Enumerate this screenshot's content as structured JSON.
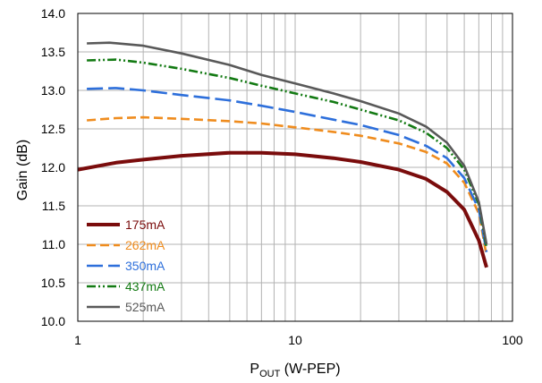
{
  "chart_data": {
    "type": "line",
    "title": "",
    "xlabel": {
      "main": "P",
      "sub": "OUT",
      "rest": " (W-PEP)"
    },
    "ylabel": "Gain (dB)",
    "x_scale": "log",
    "xlim": [
      1,
      100
    ],
    "ylim": [
      10.0,
      14.0
    ],
    "x_ticks": [
      {
        "value": 1,
        "label": "1"
      },
      {
        "value": 10,
        "label": "10"
      },
      {
        "value": 100,
        "label": "100"
      }
    ],
    "y_ticks": [
      {
        "value": 10.0,
        "label": "10.0"
      },
      {
        "value": 10.5,
        "label": "10.5"
      },
      {
        "value": 11.0,
        "label": "11.0"
      },
      {
        "value": 11.5,
        "label": "11.5"
      },
      {
        "value": 12.0,
        "label": "12.0"
      },
      {
        "value": 12.5,
        "label": "12.5"
      },
      {
        "value": 13.0,
        "label": "13.0"
      },
      {
        "value": 13.5,
        "label": "13.5"
      },
      {
        "value": 14.0,
        "label": "14.0"
      }
    ],
    "grid": true,
    "legend_position": "bottom-left",
    "series": [
      {
        "name": "175mA",
        "color": "#7a0c0c",
        "dash": "solid",
        "points": [
          [
            1,
            11.97
          ],
          [
            1.5,
            12.06
          ],
          [
            2,
            12.1
          ],
          [
            3,
            12.15
          ],
          [
            5,
            12.19
          ],
          [
            7,
            12.19
          ],
          [
            10,
            12.17
          ],
          [
            15,
            12.12
          ],
          [
            20,
            12.07
          ],
          [
            30,
            11.97
          ],
          [
            40,
            11.85
          ],
          [
            50,
            11.68
          ],
          [
            60,
            11.45
          ],
          [
            70,
            11.05
          ],
          [
            76,
            10.7
          ]
        ]
      },
      {
        "name": "262mA",
        "color": "#ef8c1e",
        "dash": "dashed",
        "points": [
          [
            1.1,
            12.61
          ],
          [
            1.5,
            12.64
          ],
          [
            2,
            12.65
          ],
          [
            3,
            12.63
          ],
          [
            5,
            12.6
          ],
          [
            7,
            12.57
          ],
          [
            10,
            12.52
          ],
          [
            15,
            12.46
          ],
          [
            20,
            12.41
          ],
          [
            30,
            12.31
          ],
          [
            40,
            12.2
          ],
          [
            50,
            12.05
          ],
          [
            60,
            11.8
          ],
          [
            70,
            11.4
          ],
          [
            76,
            10.85
          ]
        ]
      },
      {
        "name": "350mA",
        "color": "#2d6fdb",
        "dash": "longdash",
        "points": [
          [
            1.1,
            13.02
          ],
          [
            1.5,
            13.03
          ],
          [
            2,
            13.0
          ],
          [
            3,
            12.94
          ],
          [
            5,
            12.87
          ],
          [
            7,
            12.8
          ],
          [
            10,
            12.72
          ],
          [
            15,
            12.62
          ],
          [
            20,
            12.55
          ],
          [
            30,
            12.42
          ],
          [
            40,
            12.28
          ],
          [
            50,
            12.12
          ],
          [
            60,
            11.86
          ],
          [
            70,
            11.45
          ],
          [
            76,
            10.9
          ]
        ]
      },
      {
        "name": "437mA",
        "color": "#137a13",
        "dash": "dashdotdot",
        "points": [
          [
            1.1,
            13.39
          ],
          [
            1.5,
            13.4
          ],
          [
            2,
            13.36
          ],
          [
            3,
            13.28
          ],
          [
            5,
            13.16
          ],
          [
            7,
            13.06
          ],
          [
            10,
            12.96
          ],
          [
            15,
            12.85
          ],
          [
            20,
            12.75
          ],
          [
            30,
            12.61
          ],
          [
            40,
            12.45
          ],
          [
            50,
            12.25
          ],
          [
            60,
            11.97
          ],
          [
            70,
            11.52
          ],
          [
            76,
            10.95
          ]
        ]
      },
      {
        "name": "525mA",
        "color": "#595959",
        "dash": "solid",
        "points": [
          [
            1.1,
            13.61
          ],
          [
            1.4,
            13.62
          ],
          [
            2,
            13.58
          ],
          [
            3,
            13.48
          ],
          [
            5,
            13.33
          ],
          [
            7,
            13.2
          ],
          [
            10,
            13.09
          ],
          [
            15,
            12.96
          ],
          [
            20,
            12.86
          ],
          [
            30,
            12.7
          ],
          [
            40,
            12.53
          ],
          [
            50,
            12.32
          ],
          [
            60,
            12.02
          ],
          [
            70,
            11.55
          ],
          [
            76,
            11.0
          ]
        ]
      }
    ]
  }
}
